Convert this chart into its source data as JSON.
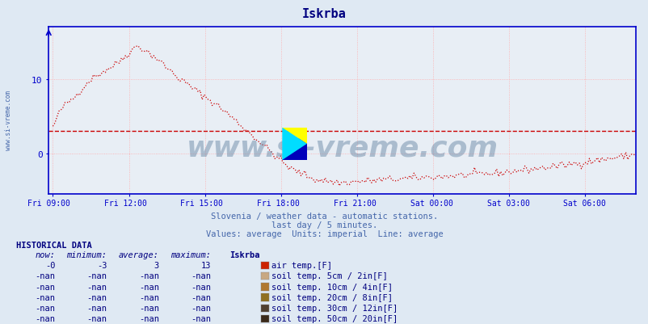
{
  "title": "Iskrba",
  "title_color": "#000080",
  "bg_color": "#dfe9f3",
  "plot_bg_color": "#e8eef5",
  "grid_color": "#ffaaaa",
  "axis_color": "#0000cc",
  "line_color": "#cc0000",
  "avg_line_value": 3,
  "ylabel_text": "www.si-vreme.com",
  "xlabel_ticks": [
    "Fri 09:00",
    "Fri 12:00",
    "Fri 15:00",
    "Fri 18:00",
    "Fri 21:00",
    "Sat 00:00",
    "Sat 03:00",
    "Sat 06:00"
  ],
  "xlabel_tick_positions": [
    0,
    180,
    360,
    540,
    720,
    900,
    1080,
    1260
  ],
  "total_minutes": 1380,
  "subtitle1": "Slovenia / weather data - automatic stations.",
  "subtitle2": "last day / 5 minutes.",
  "subtitle3": "Values: average  Units: imperial  Line: average",
  "subtitle_color": "#4466aa",
  "watermark_text": "www.si-vreme.com",
  "ylim_min": -5.5,
  "ylim_max": 17,
  "yticks": [
    0,
    10
  ],
  "historical_header": "HISTORICAL DATA",
  "hist_cols": [
    "now:",
    "minimum:",
    "average:",
    "maximum:",
    "Iskrba"
  ],
  "hist_rows": [
    [
      "-0",
      "-3",
      "3",
      "13",
      "#cc2200",
      "air temp.[F]"
    ],
    [
      "-nan",
      "-nan",
      "-nan",
      "-nan",
      "#c8a882",
      "soil temp. 5cm / 2in[F]"
    ],
    [
      "-nan",
      "-nan",
      "-nan",
      "-nan",
      "#b07830",
      "soil temp. 10cm / 4in[F]"
    ],
    [
      "-nan",
      "-nan",
      "-nan",
      "-nan",
      "#907020",
      "soil temp. 20cm / 8in[F]"
    ],
    [
      "-nan",
      "-nan",
      "-nan",
      "-nan",
      "#504030",
      "soil temp. 30cm / 12in[F]"
    ],
    [
      "-nan",
      "-nan",
      "-nan",
      "-nan",
      "#3a2a1a",
      "soil temp. 50cm / 20in[F]"
    ]
  ]
}
